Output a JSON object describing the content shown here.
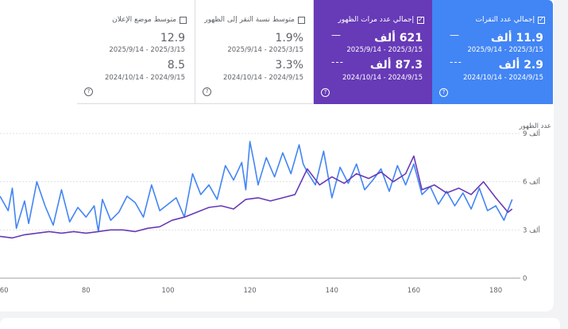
{
  "metrics": [
    {
      "label": "إجمالي عدد النقرات",
      "checked": true,
      "value_current": "11.9 ألف",
      "date_current": "2025/9/14 - 2025/3/15",
      "value_prev": "2.9 ألف",
      "date_prev": "2024/10/14 - 2024/9/15",
      "dash": "—",
      "dash_prev": "---",
      "color": "#4285f4"
    },
    {
      "label": "إجمالي عدد مرات الظهور",
      "checked": true,
      "value_current": "621 ألف",
      "date_current": "2025/9/14 - 2025/3/15",
      "value_prev": "87.3 ألف",
      "date_prev": "2024/10/14 - 2024/9/15",
      "dash": "—",
      "dash_prev": "---",
      "color": "#673ab7"
    },
    {
      "label": "متوسط نسبة النقر إلى الظهور",
      "checked": false,
      "value_current": "1.9%",
      "date_current": "2025/9/14 - 2025/3/15",
      "value_prev": "3.3%",
      "date_prev": "2024/10/14 - 2024/9/15"
    },
    {
      "label": "متوسط موضع الإعلان",
      "checked": false,
      "value_current": "12.9",
      "date_current": "2025/9/14 - 2025/3/15",
      "value_prev": "8.5",
      "date_prev": "2024/10/14 - 2024/9/15"
    }
  ],
  "help_glyph": "?",
  "check_glyph": "✓",
  "chart_data": {
    "type": "line",
    "ylabel": "عدد الظهور",
    "yticks": [
      "0",
      "3 ألف",
      "6 ألف",
      "9 ألف"
    ],
    "ytick_values": [
      0,
      3,
      6,
      9
    ],
    "ylim": [
      0,
      9
    ],
    "xticks": [
      60,
      80,
      100,
      120,
      140,
      160,
      180
    ],
    "xlim": [
      59,
      186
    ],
    "grid": true,
    "series": [
      {
        "name": "إجمالي عدد النقرات",
        "color": "#4285f4",
        "x": [
          59,
          61,
          62,
          63,
          65,
          66,
          68,
          70,
          72,
          74,
          76,
          78,
          80,
          82,
          83,
          84,
          86,
          88,
          90,
          92,
          94,
          96,
          98,
          100,
          102,
          104,
          106,
          108,
          110,
          112,
          114,
          116,
          118,
          119,
          120,
          121,
          122,
          124,
          126,
          128,
          130,
          132,
          133,
          134,
          136,
          138,
          140,
          142,
          144,
          146,
          148,
          150,
          152,
          154,
          156,
          158,
          160,
          162,
          164,
          166,
          168,
          170,
          172,
          174,
          176,
          178,
          180,
          182,
          184
        ],
        "y": [
          5.1,
          4.2,
          5.6,
          3.1,
          4.8,
          3.4,
          6.0,
          4.5,
          3.3,
          5.5,
          3.5,
          4.4,
          3.8,
          4.5,
          2.9,
          4.9,
          3.6,
          4.1,
          5.1,
          4.7,
          3.8,
          5.8,
          4.2,
          4.6,
          5.0,
          3.8,
          6.5,
          5.2,
          5.8,
          4.9,
          7.0,
          6.1,
          7.2,
          5.5,
          8.5,
          7.2,
          5.8,
          7.5,
          6.3,
          7.8,
          6.5,
          8.3,
          7.1,
          6.6,
          5.8,
          7.9,
          5.0,
          6.9,
          5.9,
          7.1,
          5.5,
          6.1,
          6.8,
          5.4,
          7.0,
          5.8,
          7.1,
          5.2,
          5.7,
          4.6,
          5.4,
          4.5,
          5.3,
          4.3,
          5.6,
          4.2,
          4.5,
          3.6,
          4.9
        ]
      },
      {
        "name": "إجمالي عدد مرات الظهور",
        "color": "#673ab7",
        "x": [
          59,
          62,
          65,
          68,
          71,
          74,
          77,
          80,
          83,
          86,
          89,
          92,
          95,
          98,
          101,
          104,
          107,
          110,
          113,
          116,
          119,
          122,
          125,
          128,
          131,
          134,
          137,
          140,
          143,
          146,
          149,
          152,
          155,
          158,
          160,
          162,
          165,
          168,
          171,
          174,
          177,
          180,
          183,
          184
        ],
        "y": [
          2.6,
          2.5,
          2.7,
          2.8,
          2.9,
          2.8,
          2.9,
          2.8,
          2.9,
          3.0,
          3.0,
          2.9,
          3.1,
          3.2,
          3.6,
          3.8,
          4.1,
          4.4,
          4.5,
          4.3,
          4.9,
          5.0,
          4.8,
          5.0,
          5.2,
          6.8,
          5.8,
          6.3,
          5.9,
          6.5,
          6.2,
          6.6,
          6.0,
          6.5,
          7.6,
          5.5,
          5.8,
          5.3,
          5.6,
          5.2,
          6.0,
          5.0,
          4.1,
          4.3
        ]
      }
    ]
  }
}
